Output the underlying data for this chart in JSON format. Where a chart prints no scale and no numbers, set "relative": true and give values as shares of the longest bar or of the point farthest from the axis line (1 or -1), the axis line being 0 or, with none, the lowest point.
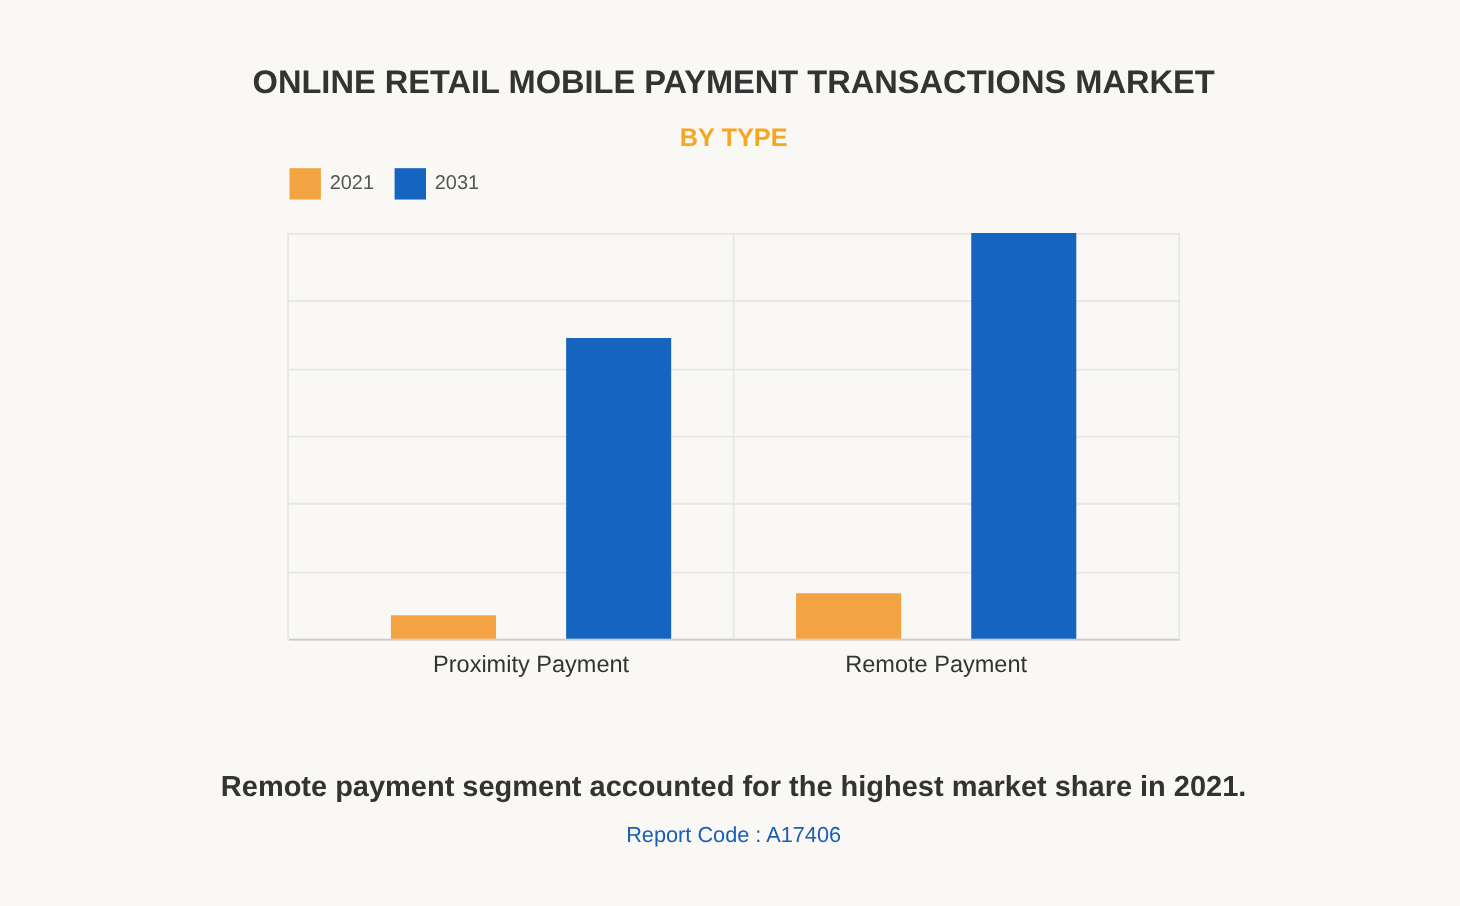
{
  "chart_data": {
    "type": "bar",
    "title": "ONLINE RETAIL MOBILE PAYMENT TRANSACTIONS MARKET",
    "subtitle": "BY TYPE",
    "categories": [
      "Proximity Payment",
      "Remote Payment"
    ],
    "series": [
      {
        "name": "2021",
        "color": "#f4a342",
        "values": [
          0.058,
          0.112
        ]
      },
      {
        "name": "2031",
        "color": "#1565c0",
        "values": [
          0.741,
          1
        ]
      }
    ],
    "relative": true,
    "grid": true,
    "legend": "top",
    "annotations": [
      "Remote payment segment accounted for the highest market share in 2021.",
      "Report Code : A17406"
    ]
  }
}
